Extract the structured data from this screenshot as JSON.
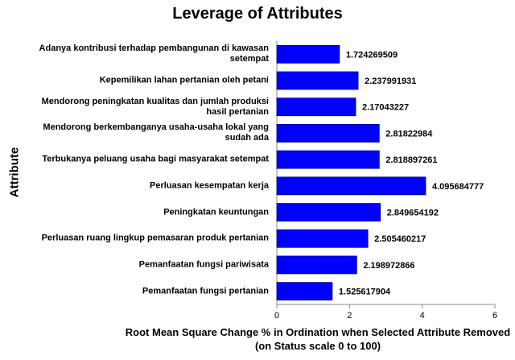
{
  "chart_data": {
    "type": "bar",
    "orientation": "horizontal",
    "title": "Leverage of Attributes",
    "x_label": "Root Mean Square Change % in Ordination when Selected Attribute Removed (on Status scale 0 to 100)",
    "y_label": "Attribute",
    "categories": [
      "Adanya kontribusi terhadap pembangunan di kawasan setempat",
      "Kepemilikan lahan pertanian oleh petani",
      "Mendorong peningkatan kualitas dan  jumlah produksi hasil pertanian",
      "Mendorong berkembanganya usaha-usaha lokal yang sudah ada",
      "Terbukanya peluang usaha bagi masyarakat setempat",
      "Perluasan kesempatan kerja",
      "Peningkatan keuntungan",
      "Perluasan ruang lingkup pemasaran produk pertanian",
      "Pemanfaatan fungsi pariwisata",
      "Pemanfaatan fungsi pertanian"
    ],
    "values": [
      1.724269509,
      2.237991931,
      2.17043227,
      2.81822984,
      2.818897261,
      4.095684777,
      2.849654192,
      2.505460217,
      2.198972866,
      1.525617904
    ],
    "color": "#0000ff",
    "xlim": [
      0,
      6
    ],
    "xticks": [
      0,
      2,
      4,
      6
    ]
  }
}
